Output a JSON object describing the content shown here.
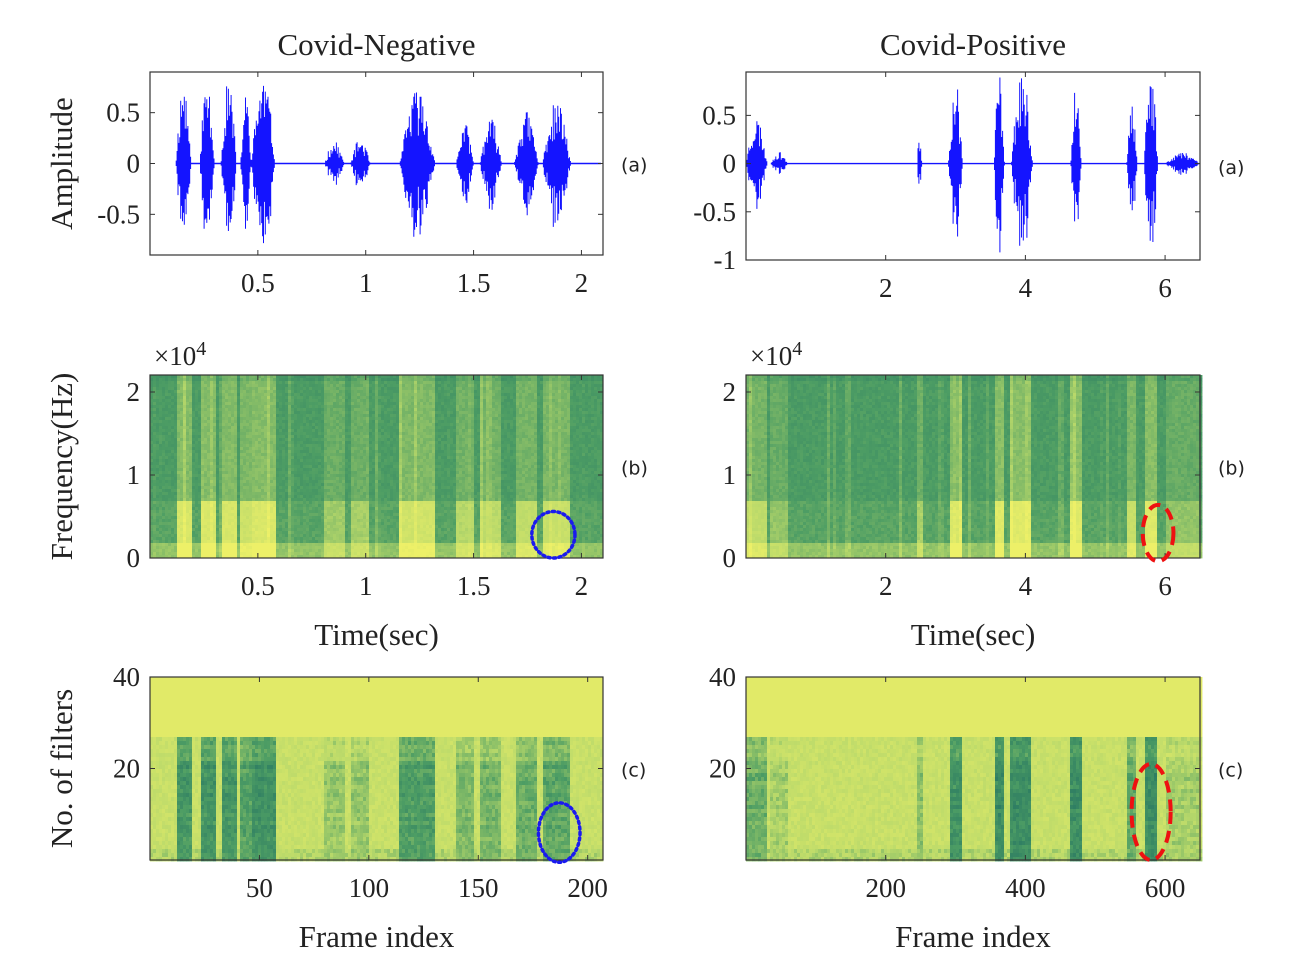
{
  "colors": {
    "waveform": "#1414ff",
    "negative_marker": "#1a1aee",
    "positive_marker": "#ee1111",
    "spec_dark": "#1f6e62",
    "spec_mid": "#4d9d64",
    "spec_light": "#b9d96a",
    "spec_bright": "#edf068"
  },
  "chart_data": [
    {
      "id": "neg-waveform",
      "type": "line",
      "column_title": "Covid-Negative",
      "row_label": "(a)",
      "xlim": [
        0,
        2.1
      ],
      "ylim": [
        -0.9,
        0.9
      ],
      "xticks": [
        0.5,
        1,
        1.5,
        2
      ],
      "xtick_labels": [
        "0.5",
        "1",
        "1.5",
        "2"
      ],
      "yticks": [
        0.5,
        0,
        -0.5
      ],
      "ytick_labels": [
        "0.5",
        "0",
        "-0.5"
      ],
      "ylabel": "Amplitude",
      "xlabel": "",
      "bursts": [
        [
          0.12,
          0.19,
          0.85
        ],
        [
          0.23,
          0.3,
          0.88
        ],
        [
          0.33,
          0.4,
          0.85
        ],
        [
          0.42,
          0.47,
          0.7
        ],
        [
          0.47,
          0.58,
          0.9
        ],
        [
          0.81,
          0.9,
          0.22
        ],
        [
          0.93,
          1.02,
          0.25
        ],
        [
          1.16,
          1.32,
          0.75
        ],
        [
          1.42,
          1.5,
          0.4
        ],
        [
          1.53,
          1.63,
          0.45
        ],
        [
          1.69,
          1.8,
          0.52
        ],
        [
          1.82,
          1.95,
          0.62
        ]
      ]
    },
    {
      "id": "pos-waveform",
      "type": "line",
      "column_title": "Covid-Positive",
      "row_label": "(a)",
      "xlim": [
        0,
        6.5
      ],
      "ylim": [
        -1,
        0.95
      ],
      "xticks": [
        2,
        4,
        6
      ],
      "xtick_labels": [
        "2",
        "4",
        "6"
      ],
      "yticks": [
        0.5,
        0,
        -0.5,
        -1
      ],
      "ytick_labels": [
        "0.5",
        "0",
        "-0.5",
        "-1"
      ],
      "ylabel": "",
      "xlabel": "",
      "bursts": [
        [
          0.0,
          0.3,
          0.5
        ],
        [
          0.35,
          0.6,
          0.12
        ],
        [
          2.45,
          2.52,
          0.3
        ],
        [
          2.9,
          3.1,
          0.9
        ],
        [
          3.55,
          3.7,
          0.98
        ],
        [
          3.8,
          4.1,
          0.98
        ],
        [
          4.65,
          4.8,
          0.98
        ],
        [
          5.45,
          5.6,
          0.6
        ],
        [
          5.7,
          5.9,
          0.98
        ],
        [
          6.0,
          6.5,
          0.12
        ]
      ]
    },
    {
      "id": "neg-spectrogram",
      "type": "heatmap",
      "row_label": "(b)",
      "xlim": [
        0,
        2.1
      ],
      "ylim": [
        0,
        22050
      ],
      "xticks": [
        0.5,
        1,
        1.5,
        2
      ],
      "xtick_labels": [
        "0.5",
        "1",
        "1.5",
        "2"
      ],
      "yticks": [
        0,
        10000,
        20000
      ],
      "ytick_labels": [
        "0",
        "1",
        "2"
      ],
      "exponent_label": "×10",
      "exponent_power": "4",
      "ylabel": "Frequency(Hz)",
      "xlabel": "Time(sec)",
      "marker": {
        "style": "dotted",
        "cx": 1.87,
        "cy": 2800,
        "rx": 0.1,
        "ry": 2800
      }
    },
    {
      "id": "pos-spectrogram",
      "type": "heatmap",
      "row_label": "(b)",
      "xlim": [
        0,
        6.5
      ],
      "ylim": [
        0,
        22050
      ],
      "xticks": [
        2,
        4,
        6
      ],
      "xtick_labels": [
        "2",
        "4",
        "6"
      ],
      "yticks": [
        0,
        10000,
        20000
      ],
      "ytick_labels": [
        "0",
        "1",
        "2"
      ],
      "exponent_label": "×10",
      "exponent_power": "4",
      "ylabel": "",
      "xlabel": "Time(sec)",
      "marker": {
        "style": "dashed",
        "cx": 5.9,
        "cy": 3000,
        "rx": 0.22,
        "ry": 3400
      }
    },
    {
      "id": "neg-melfilter",
      "type": "heatmap",
      "row_label": "(c)",
      "xlim": [
        0,
        207
      ],
      "ylim": [
        0,
        40
      ],
      "xticks": [
        50,
        100,
        150,
        200
      ],
      "xtick_labels": [
        "50",
        "100",
        "150",
        "200"
      ],
      "yticks": [
        40,
        20
      ],
      "ytick_labels": [
        "40",
        "20"
      ],
      "ylabel": "No. of filters",
      "xlabel": "Frame index",
      "marker": {
        "style": "dotted",
        "cx": 187,
        "cy": 6,
        "rx": 9.5,
        "ry": 6.5
      }
    },
    {
      "id": "pos-melfilter",
      "type": "heatmap",
      "row_label": "(c)",
      "xlim": [
        0,
        650
      ],
      "ylim": [
        0,
        40
      ],
      "xticks": [
        200,
        400,
        600
      ],
      "xtick_labels": [
        "200",
        "400",
        "600"
      ],
      "yticks": [
        40,
        20
      ],
      "ytick_labels": [
        "40",
        "20"
      ],
      "ylabel": "",
      "xlabel": "Frame index",
      "marker": {
        "style": "dashed",
        "cx": 580,
        "cy": 10.5,
        "rx": 28,
        "ry": 10.5
      }
    }
  ]
}
